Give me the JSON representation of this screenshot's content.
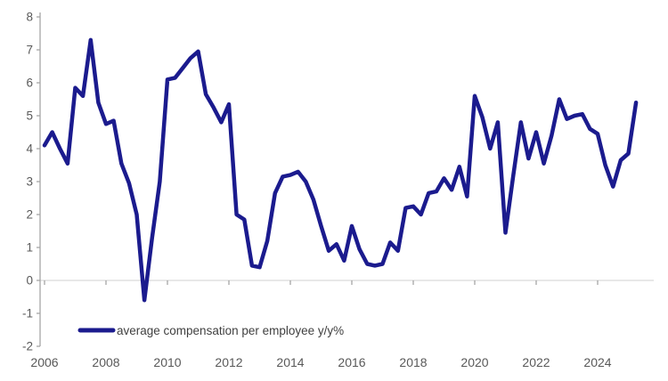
{
  "chart_data": {
    "type": "line",
    "title": "",
    "legend": {
      "label": "average compensation per employee y/y%",
      "position": "bottom-left"
    },
    "x_start_year": 2006,
    "x_step_years": 0.25,
    "x_axis": {
      "tick_labels": [
        "2006",
        "2008",
        "2010",
        "2012",
        "2014",
        "2016",
        "2018",
        "2020",
        "2022",
        "2024"
      ]
    },
    "y_axis": {
      "min": -2,
      "max": 8,
      "tick_step": 1,
      "tick_labels": [
        "8",
        "7",
        "6",
        "5",
        "4",
        "3",
        "2",
        "1",
        "0",
        "-1",
        "-2"
      ]
    },
    "grid": {
      "zero_line_only": true
    },
    "series": [
      {
        "name": "average compensation per employee y/y%",
        "color": "#1b1b8e",
        "values": [
          4.1,
          4.5,
          4.0,
          3.55,
          5.85,
          5.6,
          7.3,
          5.4,
          4.75,
          4.85,
          3.55,
          2.95,
          2.0,
          -0.6,
          1.3,
          3.0,
          6.1,
          6.15,
          6.45,
          6.75,
          6.95,
          5.65,
          5.25,
          4.8,
          5.35,
          2.0,
          1.85,
          0.45,
          0.4,
          1.2,
          2.65,
          3.15,
          3.2,
          3.3,
          3.0,
          2.45,
          1.65,
          0.9,
          1.1,
          0.6,
          1.65,
          0.95,
          0.5,
          0.45,
          0.5,
          1.15,
          0.9,
          2.2,
          2.25,
          2.0,
          2.65,
          2.7,
          3.1,
          2.75,
          3.45,
          2.55,
          5.6,
          4.95,
          4.0,
          4.8,
          1.45,
          3.15,
          4.8,
          3.7,
          4.5,
          3.55,
          4.4,
          5.5,
          4.9,
          5.0,
          5.05,
          4.6,
          4.45,
          3.5,
          2.85,
          3.65,
          3.85,
          5.4
        ]
      }
    ],
    "colors": {
      "line": "#1b1b8e",
      "axis": "#a6a6a6",
      "grid": "#d9d9d9",
      "tick_text": "#595959",
      "legend_text": "#404040",
      "background": "#ffffff"
    }
  }
}
